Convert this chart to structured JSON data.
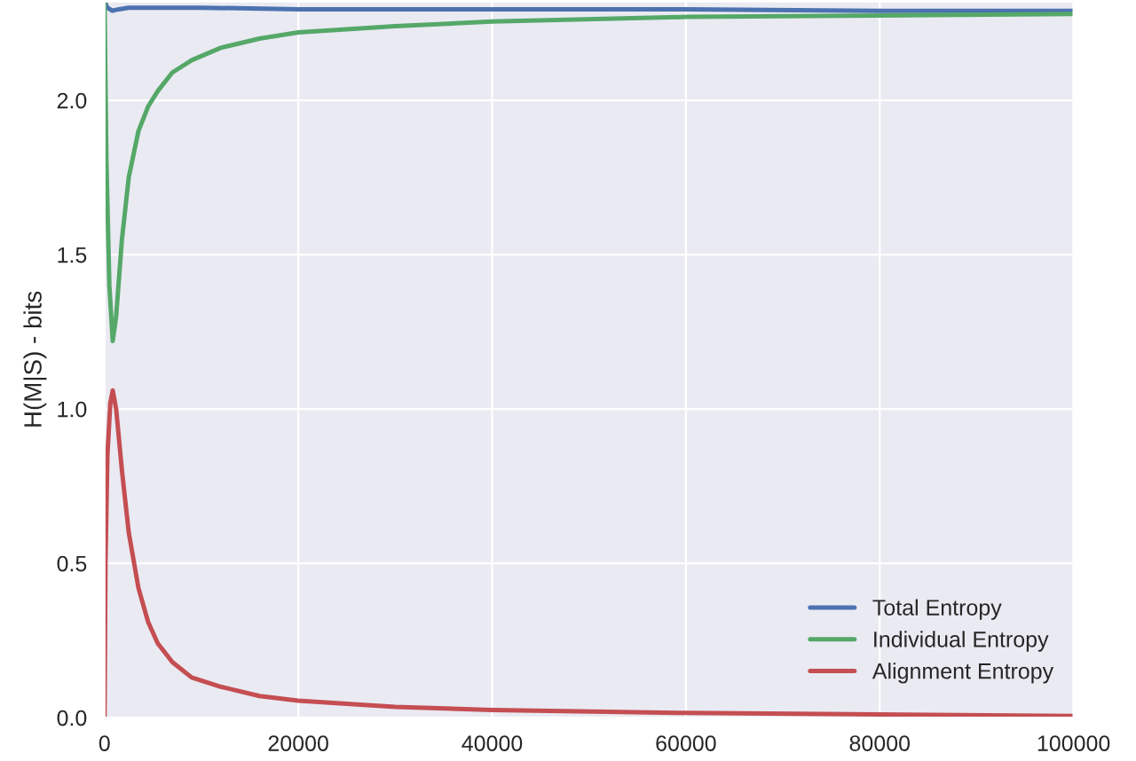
{
  "chart_data": {
    "type": "line",
    "ylabel": "H(M|S) - bits",
    "xlim": [
      0,
      100000
    ],
    "ylim": [
      0,
      2.32
    ],
    "xticks": [
      0,
      20000,
      40000,
      60000,
      80000,
      100000
    ],
    "yticks": [
      {
        "value": 0,
        "label": "0.0"
      },
      0.5,
      {
        "value": 1,
        "label": "1.0"
      },
      1.5,
      {
        "value": 2,
        "label": "2.0"
      }
    ],
    "grid": true,
    "legend": "bottom right",
    "line_style": "solid",
    "marker": "none",
    "series": [
      {
        "name": "Total Entropy",
        "color": "#4c72b0",
        "x": [
          0,
          300,
          800,
          1500,
          2500,
          5000,
          10000,
          20000,
          40000,
          60000,
          80000,
          100000
        ],
        "values": [
          2.32,
          2.3,
          2.29,
          2.295,
          2.3,
          2.3,
          2.3,
          2.295,
          2.295,
          2.295,
          2.29,
          2.29
        ]
      },
      {
        "name": "Individual Entropy",
        "color": "#55a868",
        "x": [
          0,
          200,
          500,
          850,
          1200,
          1800,
          2500,
          3500,
          4500,
          5500,
          7000,
          9000,
          12000,
          16000,
          20000,
          30000,
          40000,
          60000,
          80000,
          100000
        ],
        "values": [
          2.32,
          1.8,
          1.4,
          1.22,
          1.3,
          1.55,
          1.75,
          1.9,
          1.98,
          2.03,
          2.09,
          2.13,
          2.17,
          2.2,
          2.22,
          2.24,
          2.255,
          2.27,
          2.275,
          2.28
        ]
      },
      {
        "name": "Alignment Entropy",
        "color": "#c44e52",
        "x": [
          0,
          100,
          300,
          600,
          850,
          1200,
          1800,
          2500,
          3500,
          4500,
          5500,
          7000,
          9000,
          12000,
          16000,
          20000,
          30000,
          40000,
          60000,
          80000,
          100000
        ],
        "values": [
          0,
          0.5,
          0.85,
          1.02,
          1.06,
          1.0,
          0.8,
          0.6,
          0.42,
          0.31,
          0.24,
          0.18,
          0.13,
          0.1,
          0.07,
          0.055,
          0.035,
          0.025,
          0.015,
          0.01,
          0.005
        ]
      }
    ]
  }
}
